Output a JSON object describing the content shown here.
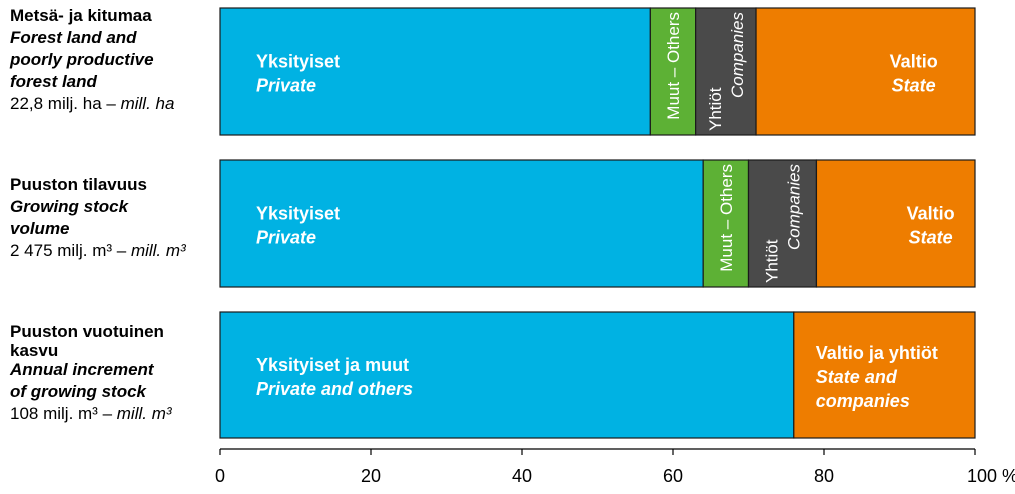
{
  "colors": {
    "private": "#00b2e3",
    "others": "#5db135",
    "companies": "#4a4a4a",
    "state": "#ee7d00",
    "border": "#1a1a1a"
  },
  "rows": [
    {
      "label_fi": "Metsä- ja kitumaa",
      "label_en_1": "Forest land and",
      "label_en_2": "poorly productive",
      "label_en_3": "forest land",
      "total": "22,8 milj. ha",
      "total_sep": " – ",
      "total_unit": "mill. ha"
    },
    {
      "label_fi": "Puuston tilavuus",
      "label_en_1": "Growing stock",
      "label_en_2": "volume",
      "total": "2 475 milj. m³",
      "total_sep": " – ",
      "total_unit": "mill. m³"
    },
    {
      "label_fi_1": "Puuston vuotuinen",
      "label_fi_2": "kasvu",
      "label_en_1": "Annual increment",
      "label_en_2": "of growing stock",
      "total": "108 milj. m³",
      "total_sep": " – ",
      "total_unit": "mill. m³"
    }
  ],
  "chart_data": {
    "type": "bar",
    "orientation": "horizontal",
    "stacked": true,
    "categories": [
      "Metsä- ja kitumaa",
      "Puuston tilavuus",
      "Puuston vuotuinen kasvu"
    ],
    "series": [
      {
        "name": "Yksityiset / Private",
        "color": "#00b2e3",
        "values": [
          57,
          64,
          null
        ]
      },
      {
        "name": "Muut – Others",
        "color": "#5db135",
        "values": [
          6,
          6,
          null
        ]
      },
      {
        "name": "Yhtiöt / Companies",
        "color": "#4a4a4a",
        "values": [
          8,
          9,
          null
        ]
      },
      {
        "name": "Valtio / State",
        "color": "#ee7d00",
        "values": [
          29,
          21,
          null
        ]
      },
      {
        "name": "Yksityiset ja muut / Private and others",
        "color": "#00b2e3",
        "values": [
          null,
          null,
          76
        ]
      },
      {
        "name": "Valtio ja yhtiöt / State and companies",
        "color": "#ee7d00",
        "values": [
          null,
          null,
          24
        ]
      }
    ],
    "segments": [
      [
        {
          "value": 57,
          "color": "#00b2e3",
          "l1": "Yksityiset",
          "l2": "Private",
          "style": "h"
        },
        {
          "value": 6,
          "color": "#5db135",
          "l1": "Muut – Others",
          "style": "v1"
        },
        {
          "value": 8,
          "color": "#4a4a4a",
          "l1": "Yhtiöt",
          "l2": "Companies",
          "style": "v2"
        },
        {
          "value": 29,
          "color": "#ee7d00",
          "l1": "Valtio",
          "l2": "State",
          "style": "hc"
        }
      ],
      [
        {
          "value": 64,
          "color": "#00b2e3",
          "l1": "Yksityiset",
          "l2": "Private",
          "style": "h"
        },
        {
          "value": 6,
          "color": "#5db135",
          "l1": "Muut – Others",
          "style": "v1"
        },
        {
          "value": 9,
          "color": "#4a4a4a",
          "l1": "Yhtiöt",
          "l2": "Companies",
          "style": "v2"
        },
        {
          "value": 21,
          "color": "#ee7d00",
          "l1": "Valtio",
          "l2": "State",
          "style": "hc"
        }
      ],
      [
        {
          "value": 76,
          "color": "#00b2e3",
          "l1": "Yksityiset ja muut",
          "l2": "Private and others",
          "style": "h"
        },
        {
          "value": 24,
          "color": "#ee7d00",
          "l1": "Valtio ja yhtiöt",
          "l2": "State  and",
          "l3": "companies",
          "style": "h3"
        }
      ]
    ],
    "x_ticks": [
      "0",
      "20",
      "40",
      "60",
      "80",
      "100 %"
    ],
    "x_tick_values": [
      0,
      20,
      40,
      60,
      80,
      100
    ],
    "xlim": [
      0,
      100
    ],
    "grid": false,
    "legend": "none"
  }
}
